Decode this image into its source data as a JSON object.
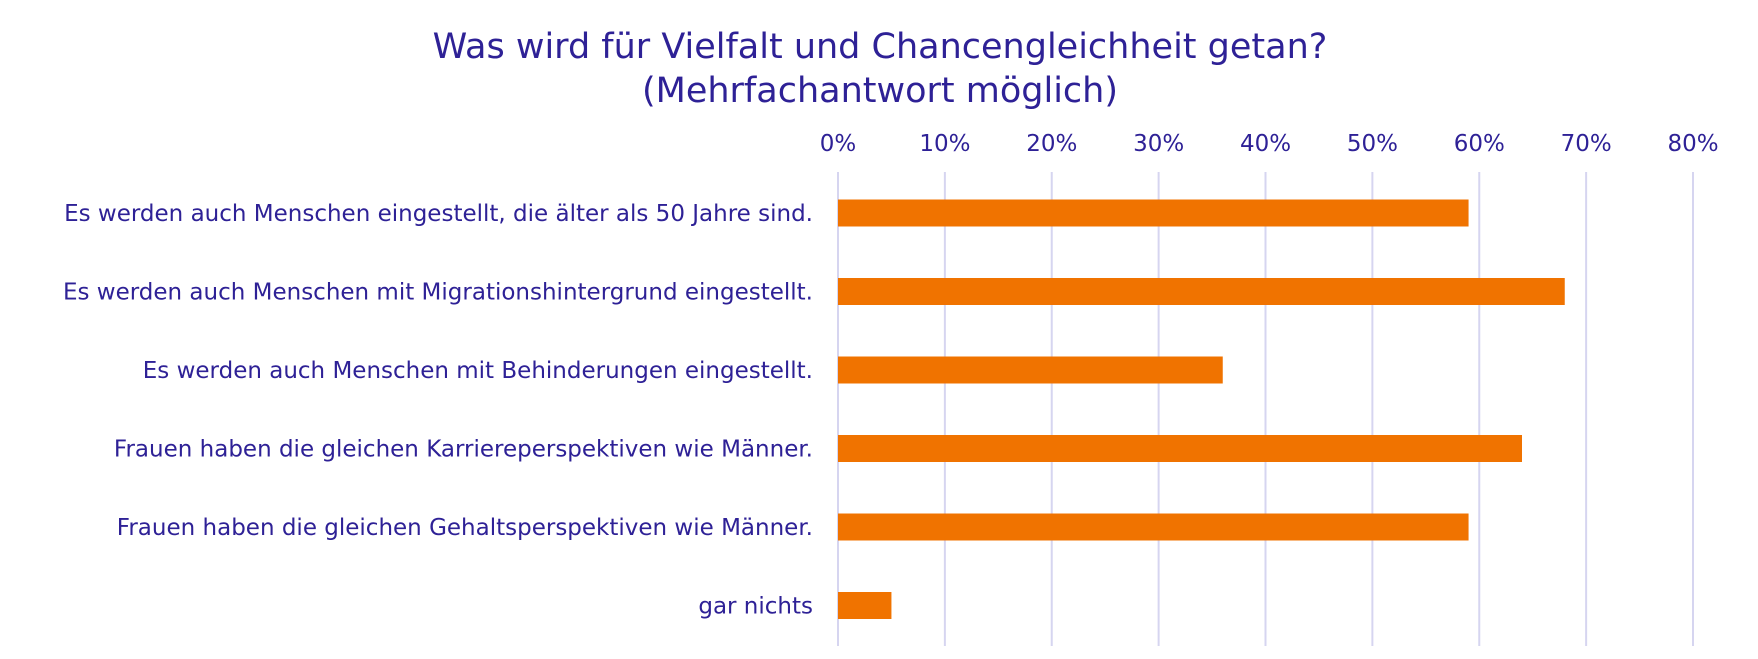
{
  "chart_data": {
    "type": "bar",
    "orientation": "horizontal",
    "title": [
      "Was wird für Vielfalt und Chancengleichheit getan?",
      "(Mehrfachantwort möglich)"
    ],
    "categories": [
      "Es werden auch Menschen eingestellt, die älter als 50 Jahre sind.",
      "Es werden auch Menschen mit Migrationshintergrund eingestellt.",
      "Es werden auch Menschen mit Behinderungen eingestellt.",
      "Frauen haben die gleichen Karriereperspektiven wie Männer.",
      "Frauen haben die gleichen Gehaltsperspektiven wie Männer.",
      "gar nichts"
    ],
    "values": [
      0.59,
      0.68,
      0.36,
      0.64,
      0.59,
      0.05
    ],
    "xlim": [
      0,
      0.8
    ],
    "ticks": [
      "0%",
      "10%",
      "20%",
      "30%",
      "40%",
      "50%",
      "60%",
      "70%",
      "80%"
    ],
    "tick_values": [
      0,
      0.1,
      0.2,
      0.3,
      0.4,
      0.5,
      0.6,
      0.7,
      0.8
    ],
    "axis_position": "top",
    "grid": true,
    "legend": "none",
    "colors": {
      "bar": "#f07300",
      "text": "#2e2196",
      "grid": "#d6d5f0"
    }
  }
}
